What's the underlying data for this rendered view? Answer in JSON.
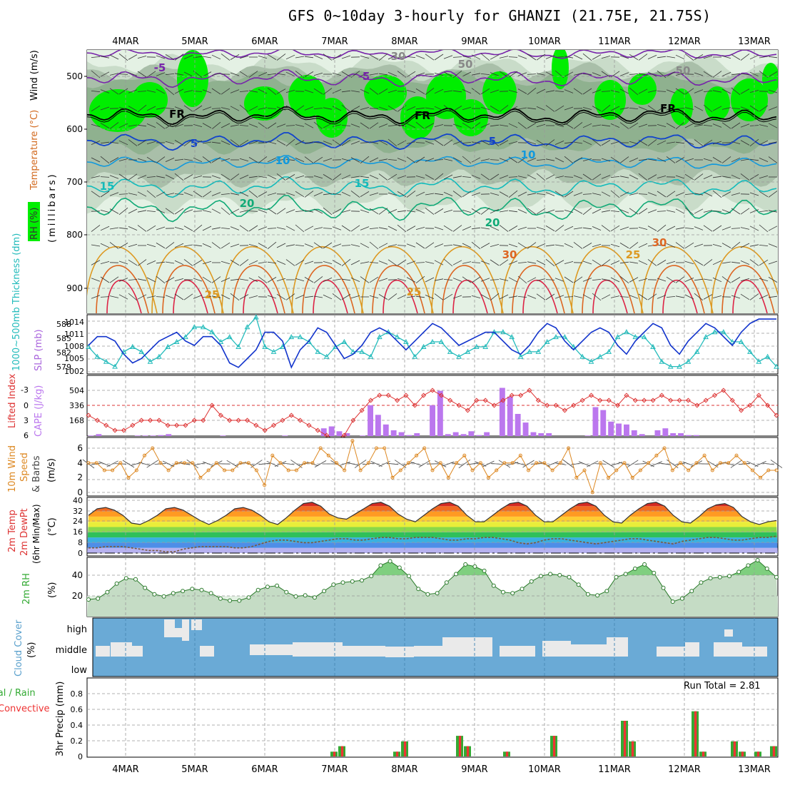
{
  "title": "GFS 0~10day 3-hourly for GHANZI (21.75E, 21.75S)",
  "dates": [
    "4MAR",
    "5MAR",
    "6MAR",
    "7MAR",
    "8MAR",
    "9MAR",
    "10MAR",
    "11MAR",
    "12MAR",
    "13MAR"
  ],
  "colors": {
    "rh_bright": "#00ff00",
    "rh_mid": "#55cc55",
    "rh_grey": "#b8c8b8",
    "slp": "#1133cc",
    "thickness": "#22bbbb",
    "lifted": "#dd3333",
    "cape": "#bb77ee",
    "wind10m": "#dd8822",
    "barb": "#444444",
    "rh2m": "#44aa44",
    "cloud_bg": "#6aaad6",
    "cloud": "#e8e8e8",
    "precip_total": "#33aa33",
    "precip_conv": "#ee3333"
  },
  "panels": {
    "upper": {
      "ylabel_parts": [
        "RH (%)",
        "Temperature (°C)",
        "Wind (m/s)"
      ],
      "ylabel2": "(millibars)",
      "yticks": [
        "500",
        "600",
        "700",
        "800",
        "900"
      ],
      "contour_labels": [
        "-5",
        "-5",
        "FR",
        "FR",
        "FR",
        "5",
        "5",
        "10",
        "10",
        "15",
        "15",
        "20",
        "20",
        "25",
        "25",
        "25",
        "30",
        "30",
        "30",
        "50",
        "50",
        "30"
      ]
    },
    "thickness_slp": {
      "ylabel_left": "1000~500mb Thickness (dm)",
      "ylabel_right": "SLP (mb)",
      "yticks_left": [
        "588",
        "585",
        "582",
        "579"
      ],
      "yticks_right": [
        "1014",
        "1011",
        "1008",
        "1005",
        "1002"
      ]
    },
    "lifted_cape": {
      "ylabel_left": "Lifted Index",
      "ylabel_right": "CAPE (J/kg)",
      "yticks_left": [
        "-3",
        "0",
        "3",
        "6"
      ],
      "yticks_right": [
        "504",
        "336",
        "168"
      ]
    },
    "wind10m": {
      "ylabel": "10m Wind Speed & Barbs (m/s)",
      "ylabel_parts": [
        "10m Wind",
        "Speed",
        "& Barbs",
        "(m/s)"
      ],
      "yticks": [
        "6",
        "4",
        "2",
        "0"
      ]
    },
    "temp2m": {
      "ylabel_parts": [
        "2m Temp",
        "2m DewPt",
        "(6hr Min/Max)",
        "(°C)"
      ],
      "yticks": [
        "40",
        "32",
        "24",
        "16",
        "8",
        "0"
      ]
    },
    "rh2m": {
      "ylabel_parts": [
        "2m RH",
        "(%)"
      ],
      "yticks": [
        "40",
        "20"
      ]
    },
    "cloud": {
      "ylabel_parts": [
        "Cloud Cover",
        "(%)"
      ],
      "levels": [
        "high",
        "middle",
        "low"
      ]
    },
    "precip": {
      "ylabel_parts": [
        "Total / Rain",
        "Convective",
        "3hr Precip (mm)"
      ],
      "yticks": [
        "0.8",
        "0.6",
        "0.4",
        "0.2",
        "0"
      ],
      "run_total": "Run Total = 2.81"
    }
  },
  "chart_data": [
    {
      "type": "line",
      "title": "1000~500mb Thickness (dm)",
      "ylim": [
        577.5,
        589.5
      ],
      "series": [
        {
          "name": "1000~500mb Thickness (dm)",
          "values": [
            583,
            581,
            580,
            579,
            582,
            583,
            582,
            580,
            581,
            583,
            584,
            585,
            587,
            587,
            586,
            584,
            585,
            583,
            587,
            589,
            583,
            582,
            583,
            585,
            585,
            584,
            582,
            581,
            583,
            584,
            582,
            582,
            581,
            585,
            586,
            585,
            584,
            581,
            583,
            584,
            584,
            582,
            581,
            582,
            583,
            583,
            586,
            586,
            585,
            581,
            582,
            582,
            584,
            585,
            585,
            583,
            581,
            580,
            581,
            582,
            585,
            586,
            585,
            585,
            583,
            580,
            579,
            579,
            580,
            582,
            585,
            586,
            586,
            584,
            584,
            582,
            580,
            581,
            579
          ]
        }
      ]
    },
    {
      "type": "line",
      "title": "SLP (mb)",
      "ylim": [
        1001.5,
        1015
      ],
      "series": [
        {
          "name": "SLP (mb)",
          "values": [
            1008,
            1010,
            1010,
            1009,
            1006,
            1004,
            1005,
            1007,
            1009,
            1010,
            1011,
            1009,
            1008,
            1010,
            1010,
            1008,
            1004,
            1003,
            1005,
            1007,
            1011,
            1011,
            1009,
            1003,
            1007,
            1009,
            1012,
            1011,
            1008,
            1005,
            1006,
            1008,
            1011,
            1012,
            1011,
            1009,
            1007,
            1009,
            1011,
            1013,
            1012,
            1010,
            1008,
            1009,
            1010,
            1011,
            1011,
            1009,
            1007,
            1006,
            1008,
            1011,
            1013,
            1012,
            1009,
            1007,
            1009,
            1011,
            1012,
            1011,
            1008,
            1006,
            1009,
            1011,
            1013,
            1012,
            1008,
            1006,
            1009,
            1011,
            1013,
            1012,
            1010,
            1008,
            1011,
            1013,
            1014,
            1014,
            1014
          ]
        }
      ]
    },
    {
      "type": "line",
      "title": "Lifted Index",
      "ylim": [
        6,
        -4.5
      ],
      "series": [
        {
          "name": "Lifted Index",
          "values": [
            2,
            3,
            4,
            5,
            5,
            4,
            3,
            3,
            3,
            4,
            4,
            4,
            3,
            3,
            0,
            2,
            3,
            3,
            3,
            4,
            5,
            4,
            3,
            2,
            3,
            4,
            5,
            6,
            7,
            6,
            3,
            1,
            -1,
            -2,
            -2,
            -1,
            -2,
            0,
            -2,
            -3,
            -2,
            -1,
            0,
            1,
            -1,
            -1,
            0,
            -1,
            -2,
            -2,
            -3,
            -1,
            0,
            0,
            1,
            0,
            -1,
            -2,
            -1,
            -1,
            0,
            -2,
            -1,
            -1,
            -1,
            -2,
            -1,
            -1,
            -1,
            0,
            -1,
            -2,
            -3,
            -1,
            1,
            0,
            -2,
            0,
            2
          ]
        }
      ]
    },
    {
      "type": "bar",
      "title": "CAPE (J/kg)",
      "ylim": [
        0,
        630
      ],
      "series": [
        {
          "name": "CAPE (J/kg)",
          "values": [
            5,
            20,
            0,
            0,
            0,
            0,
            5,
            5,
            5,
            10,
            20,
            0,
            0,
            0,
            0,
            0,
            0,
            5,
            0,
            0,
            0,
            0,
            0,
            0,
            0,
            5,
            0,
            0,
            0,
            0,
            80,
            100,
            50,
            30,
            0,
            5,
            320,
            220,
            120,
            60,
            40,
            10,
            30,
            0,
            320,
            470,
            20,
            40,
            20,
            50,
            10,
            40,
            0,
            500,
            410,
            230,
            140,
            40,
            30,
            30,
            0,
            0,
            0,
            0,
            5,
            300,
            270,
            150,
            130,
            120,
            60,
            20,
            0,
            60,
            80,
            30,
            30,
            10,
            10,
            0,
            0,
            0,
            0,
            0,
            0,
            0,
            0,
            0,
            0
          ]
        }
      ]
    },
    {
      "type": "line",
      "title": "10m Wind Speed (m/s)",
      "ylim": [
        0,
        7
      ],
      "series": [
        {
          "name": "10m Wind Speed (m/s)",
          "values": [
            4,
            4,
            3,
            3,
            4,
            2,
            3,
            5,
            6,
            4,
            3,
            4,
            4,
            4,
            2,
            3,
            4,
            3,
            3,
            4,
            4,
            3,
            1,
            5,
            4,
            3,
            3,
            4,
            4,
            6,
            5,
            4,
            3,
            7,
            3,
            4,
            6,
            6,
            2,
            3,
            4,
            5,
            6,
            3,
            4,
            2,
            4,
            5,
            3,
            4,
            2,
            3,
            4,
            4,
            5,
            3,
            4,
            4,
            3,
            4,
            6,
            2,
            3,
            0,
            4,
            2,
            3,
            4,
            2,
            3,
            4,
            5,
            6,
            3,
            4,
            3,
            4,
            5,
            3,
            4,
            4,
            5,
            4,
            3,
            2,
            3,
            3
          ]
        }
      ]
    },
    {
      "type": "area",
      "title": "2m Temp (°C)",
      "ylim": [
        -2,
        41
      ],
      "series": [
        {
          "name": "2m Temp (°C)",
          "values": [
            29,
            34,
            35,
            33,
            29,
            23,
            22,
            25,
            29,
            34,
            35,
            33,
            29,
            25,
            22,
            25,
            29,
            34,
            35,
            33,
            29,
            24,
            22,
            27,
            33,
            38,
            39,
            36,
            30,
            27,
            26,
            30,
            34,
            38,
            39,
            36,
            30,
            26,
            24,
            29,
            34,
            38,
            39,
            36,
            29,
            24,
            24,
            29,
            34,
            38,
            39,
            36,
            29,
            24,
            24,
            29,
            34,
            38,
            39,
            36,
            29,
            24,
            23,
            29,
            34,
            38,
            39,
            36,
            29,
            24,
            23,
            28,
            34,
            37,
            38,
            35,
            28,
            24,
            22,
            24,
            25
          ]
        },
        {
          "name": "2m DewPt (°C)",
          "values": [
            4,
            4,
            5,
            5,
            5,
            4,
            3,
            2,
            2,
            1,
            1,
            3,
            4,
            5,
            5,
            5,
            5,
            4,
            4,
            5,
            7,
            9,
            10,
            10,
            9,
            8,
            8,
            9,
            10,
            11,
            11,
            10,
            10,
            11,
            12,
            12,
            11,
            11,
            12,
            12,
            12,
            11,
            10,
            10,
            11,
            11,
            12,
            12,
            11,
            10,
            8,
            7,
            8,
            10,
            11,
            11,
            10,
            9,
            8,
            7,
            8,
            9,
            10,
            11,
            11,
            10,
            9,
            8,
            7,
            9,
            10,
            11,
            12,
            12,
            11,
            10,
            10,
            11,
            12,
            12,
            13
          ]
        }
      ]
    },
    {
      "type": "area",
      "title": "2m RH (%)",
      "ylim": [
        0,
        55
      ],
      "series": [
        {
          "name": "2m RH (%)",
          "values": [
            16,
            17,
            23,
            31,
            36,
            35,
            27,
            21,
            19,
            22,
            24,
            26,
            25,
            22,
            17,
            15,
            15,
            18,
            25,
            28,
            29,
            23,
            19,
            20,
            18,
            24,
            30,
            32,
            33,
            34,
            38,
            48,
            52,
            46,
            38,
            26,
            21,
            22,
            32,
            40,
            49,
            47,
            43,
            29,
            23,
            22,
            26,
            33,
            38,
            40,
            39,
            37,
            30,
            21,
            20,
            24,
            37,
            40,
            45,
            49,
            41,
            27,
            14,
            17,
            24,
            32,
            36,
            37,
            38,
            42,
            48,
            53,
            45,
            37
          ]
        }
      ]
    },
    {
      "type": "bar",
      "title": "3hr Precip (mm)",
      "ylim": [
        0,
        1.0
      ],
      "series": [
        {
          "name": "Total / Rain",
          "values": [
            0,
            0,
            0,
            0,
            0,
            0,
            0,
            0,
            0,
            0,
            0,
            0,
            0,
            0,
            0,
            0,
            0,
            0,
            0,
            0,
            0,
            0,
            0,
            0,
            0,
            0,
            0,
            0,
            0,
            0,
            0,
            0.06,
            0.13,
            0,
            0,
            0,
            0,
            0,
            0,
            0.06,
            0.19,
            0,
            0,
            0,
            0,
            0,
            0,
            0.26,
            0.13,
            0,
            0,
            0,
            0,
            0.06,
            0,
            0,
            0,
            0,
            0,
            0.26,
            0,
            0,
            0,
            0,
            0,
            0,
            0,
            0,
            0.45,
            0.19,
            0,
            0,
            0,
            0,
            0,
            0,
            0,
            0.57,
            0.06,
            0,
            0,
            0,
            0.19,
            0.06,
            0,
            0.06,
            0,
            0.13
          ]
        },
        {
          "name": "Convective",
          "values": [
            0,
            0,
            0,
            0,
            0,
            0,
            0,
            0,
            0,
            0,
            0,
            0,
            0,
            0,
            0,
            0,
            0,
            0,
            0,
            0,
            0,
            0,
            0,
            0,
            0,
            0,
            0,
            0,
            0,
            0,
            0,
            0.06,
            0.13,
            0,
            0,
            0,
            0,
            0,
            0,
            0.06,
            0.19,
            0,
            0,
            0,
            0,
            0,
            0,
            0.26,
            0.13,
            0,
            0,
            0,
            0,
            0.06,
            0,
            0,
            0,
            0,
            0,
            0.26,
            0,
            0,
            0,
            0,
            0,
            0,
            0,
            0,
            0.45,
            0.19,
            0,
            0,
            0,
            0,
            0,
            0,
            0,
            0.57,
            0.06,
            0,
            0,
            0,
            0.19,
            0.06,
            0,
            0.06,
            0,
            0.13
          ]
        }
      ]
    }
  ]
}
